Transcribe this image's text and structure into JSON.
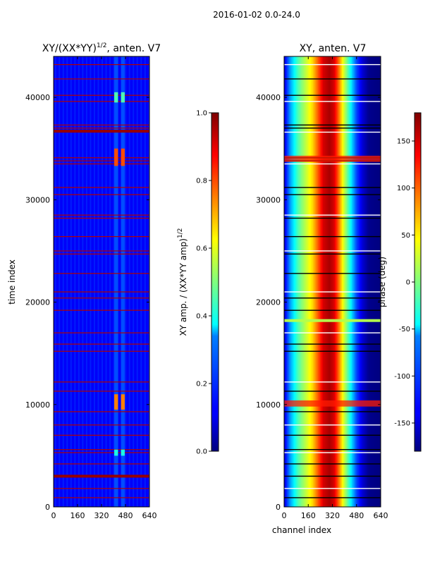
{
  "figure": {
    "suptitle": "2016-01-02 0.0-24.0"
  },
  "chart_data": [
    {
      "type": "heatmap",
      "title_base": "XY/(XX*YY)",
      "title_exp": "1/2",
      "title_tail": ", anten. V7",
      "xlabel": "",
      "ylabel": "time index",
      "xlim": [
        0,
        640
      ],
      "ylim": [
        0,
        44000
      ],
      "xticks": [
        0,
        160,
        320,
        480,
        640
      ],
      "yticks": [
        0,
        10000,
        20000,
        30000,
        40000
      ],
      "colormap": "jet",
      "colorbar": {
        "label_base": "XY amp. / (XX*YY amp)",
        "label_exp": "1/2",
        "vmin": 0.0,
        "vmax": 1.0,
        "ticks": [
          "0.0",
          "0.2",
          "0.4",
          "0.6",
          "0.8",
          "1.0"
        ]
      },
      "background_value": 0.12,
      "hot_channel_ranges": [
        [
          405,
          430
        ],
        [
          450,
          475
        ]
      ],
      "flag_rows": [
        43200,
        41800,
        40200,
        39600,
        37300,
        37000,
        36600,
        34100,
        33800,
        33500,
        31200,
        30500,
        28500,
        28200,
        26400,
        25000,
        24700,
        22800,
        21000,
        20400,
        19200,
        17000,
        15900,
        15200,
        12200,
        11300,
        9300,
        8000,
        7000,
        5600,
        5300,
        4200,
        3000,
        1800,
        900
      ],
      "flag_value": 0.95
    },
    {
      "type": "heatmap",
      "title": "XY, anten. V7",
      "xlabel": "channel index",
      "ylabel": "",
      "xlim": [
        0,
        640
      ],
      "ylim": [
        0,
        44000
      ],
      "xticks": [
        0,
        160,
        320,
        480,
        640
      ],
      "yticks": [
        0,
        10000,
        20000,
        30000,
        40000
      ],
      "colormap": "jet",
      "colorbar": {
        "label": "phase (deg)",
        "vmin": -180,
        "vmax": 180,
        "ticks": [
          -150,
          -100,
          -50,
          0,
          50,
          100,
          150
        ]
      },
      "phase_profile": [
        [
          0,
          -150
        ],
        [
          40,
          -80
        ],
        [
          90,
          -20
        ],
        [
          140,
          20
        ],
        [
          190,
          60
        ],
        [
          230,
          110
        ],
        [
          260,
          150
        ],
        [
          300,
          165
        ],
        [
          330,
          150
        ],
        [
          360,
          100
        ],
        [
          390,
          40
        ],
        [
          420,
          -10
        ],
        [
          450,
          -60
        ],
        [
          480,
          -110
        ],
        [
          520,
          -150
        ],
        [
          560,
          -175
        ],
        [
          640,
          -180
        ]
      ],
      "flag_rows": [
        43200,
        41800,
        40200,
        39600,
        37300,
        37000,
        36600,
        34100,
        33800,
        33500,
        31200,
        30500,
        28500,
        28200,
        26400,
        25000,
        24700,
        22800,
        21000,
        20400,
        19200,
        17000,
        15900,
        15200,
        12200,
        11300,
        9300,
        8000,
        7000,
        5600,
        5300,
        4200,
        3000,
        1800,
        900
      ]
    }
  ]
}
